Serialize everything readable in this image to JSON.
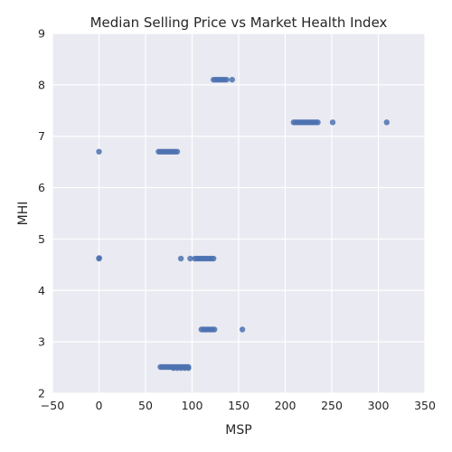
{
  "chart_data": {
    "type": "scatter",
    "title": "Median Selling Price vs Market Health Index",
    "xlabel": "MSP",
    "ylabel": "MHI",
    "xlim": [
      -50,
      350
    ],
    "ylim": [
      2,
      9
    ],
    "x_ticks": [
      -50,
      0,
      50,
      100,
      150,
      200,
      250,
      300,
      350
    ],
    "y_ticks": [
      2,
      3,
      4,
      5,
      6,
      7,
      8,
      9
    ],
    "grid": true,
    "legend": "none",
    "style": "seaborn-darkgrid",
    "series": [
      {
        "color": "#4c72b0",
        "points": [
          [
            0,
            6.7
          ],
          [
            0,
            4.62
          ],
          [
            0.2,
            4.63
          ],
          [
            64,
            6.7
          ],
          [
            66,
            6.7
          ],
          [
            68,
            6.7
          ],
          [
            70,
            6.7
          ],
          [
            72,
            6.7
          ],
          [
            74,
            6.7
          ],
          [
            76,
            6.7
          ],
          [
            78,
            6.7
          ],
          [
            80,
            6.7
          ],
          [
            82,
            6.7
          ],
          [
            84,
            6.7
          ],
          [
            123,
            8.1
          ],
          [
            125,
            8.1
          ],
          [
            127,
            8.1
          ],
          [
            129,
            8.1
          ],
          [
            131,
            8.1
          ],
          [
            133,
            8.1
          ],
          [
            135,
            8.1
          ],
          [
            137,
            8.1
          ],
          [
            143,
            8.1
          ],
          [
            209,
            7.27
          ],
          [
            211,
            7.27
          ],
          [
            213,
            7.27
          ],
          [
            215,
            7.27
          ],
          [
            217,
            7.27
          ],
          [
            219,
            7.27
          ],
          [
            221,
            7.27
          ],
          [
            223,
            7.27
          ],
          [
            225,
            7.27
          ],
          [
            227,
            7.27
          ],
          [
            229,
            7.27
          ],
          [
            231,
            7.27
          ],
          [
            233,
            7.27
          ],
          [
            235,
            7.27
          ],
          [
            251,
            7.27
          ],
          [
            309,
            7.27
          ],
          [
            88,
            4.62
          ],
          [
            98,
            4.62
          ],
          [
            103,
            4.62
          ],
          [
            105,
            4.62
          ],
          [
            107,
            4.62
          ],
          [
            109,
            4.62
          ],
          [
            111,
            4.62
          ],
          [
            113,
            4.62
          ],
          [
            115,
            4.62
          ],
          [
            117,
            4.62
          ],
          [
            119,
            4.62
          ],
          [
            121,
            4.62
          ],
          [
            123,
            4.62
          ],
          [
            110,
            3.24
          ],
          [
            112,
            3.24
          ],
          [
            114,
            3.24
          ],
          [
            116,
            3.24
          ],
          [
            118,
            3.24
          ],
          [
            120,
            3.24
          ],
          [
            122,
            3.24
          ],
          [
            124,
            3.24
          ],
          [
            154,
            3.24
          ],
          [
            66,
            2.51
          ],
          [
            68,
            2.51
          ],
          [
            70,
            2.51
          ],
          [
            72,
            2.51
          ],
          [
            74,
            2.51
          ],
          [
            76,
            2.51
          ],
          [
            78,
            2.51
          ],
          [
            80,
            2.51
          ],
          [
            82,
            2.51
          ],
          [
            84,
            2.51
          ],
          [
            86,
            2.51
          ],
          [
            88,
            2.51
          ],
          [
            90,
            2.51
          ],
          [
            92,
            2.51
          ],
          [
            94,
            2.51
          ],
          [
            96,
            2.51
          ],
          [
            80,
            2.49
          ],
          [
            84,
            2.49
          ],
          [
            88,
            2.49
          ],
          [
            92,
            2.49
          ],
          [
            96,
            2.49
          ]
        ]
      }
    ]
  }
}
